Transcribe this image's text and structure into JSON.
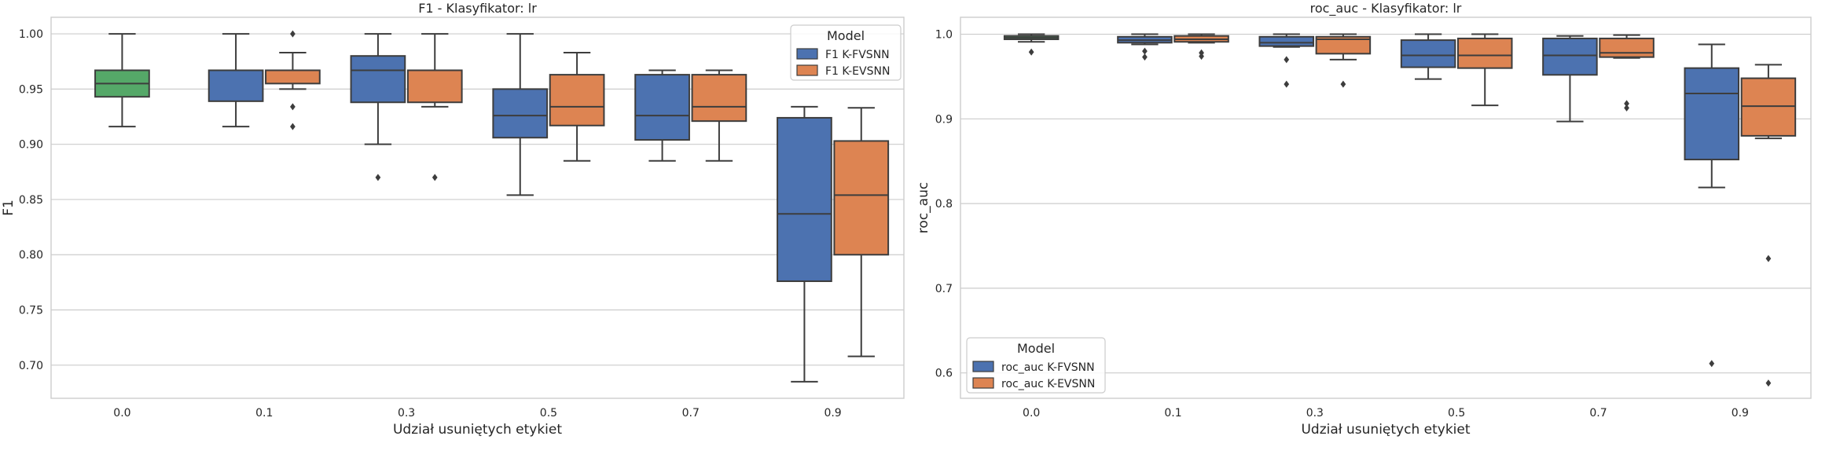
{
  "chart_data": [
    {
      "type": "box",
      "title": "F1 - Klasyfikator: lr",
      "xlabel": "Udział usuniętych etykiet",
      "ylabel": "F1",
      "categories": [
        "0.0",
        "0.1",
        "0.3",
        "0.5",
        "0.7",
        "0.9"
      ],
      "ylim": [
        0.67,
        1.015
      ],
      "yticks": [
        "0.70",
        "0.75",
        "0.80",
        "0.85",
        "0.90",
        "0.95",
        "1.00"
      ],
      "grid": true,
      "legend": {
        "title": "Model",
        "position": "top-right"
      },
      "single_box": {
        "category": "0.0",
        "color": "#55a868",
        "stats": {
          "whislo": 0.916,
          "q1": 0.943,
          "med": 0.955,
          "q3": 0.967,
          "whishi": 1.0,
          "fliers": []
        }
      },
      "series": [
        {
          "name": "F1 K-FVSNN",
          "color": "#4c72b0",
          "boxes": [
            null,
            {
              "whislo": 0.916,
              "q1": 0.939,
              "med": 0.967,
              "q3": 0.967,
              "whishi": 1.0,
              "fliers": []
            },
            {
              "whislo": 0.9,
              "q1": 0.938,
              "med": 0.967,
              "q3": 0.98,
              "whishi": 1.0,
              "fliers": [
                0.87
              ]
            },
            {
              "whislo": 0.854,
              "q1": 0.906,
              "med": 0.926,
              "q3": 0.95,
              "whishi": 1.0,
              "fliers": []
            },
            {
              "whislo": 0.885,
              "q1": 0.904,
              "med": 0.926,
              "q3": 0.963,
              "whishi": 0.967,
              "fliers": []
            },
            {
              "whislo": 0.685,
              "q1": 0.776,
              "med": 0.837,
              "q3": 0.924,
              "whishi": 0.934,
              "fliers": []
            }
          ]
        },
        {
          "name": "F1 K-EVSNN",
          "color": "#dd8452",
          "boxes": [
            null,
            {
              "whislo": 0.95,
              "q1": 0.955,
              "med": 0.967,
              "q3": 0.967,
              "whishi": 0.983,
              "fliers": [
                0.916,
                0.934,
                1.0
              ]
            },
            {
              "whislo": 0.934,
              "q1": 0.938,
              "med": 0.967,
              "q3": 0.967,
              "whishi": 1.0,
              "fliers": [
                0.87
              ]
            },
            {
              "whislo": 0.885,
              "q1": 0.917,
              "med": 0.934,
              "q3": 0.963,
              "whishi": 0.983,
              "fliers": []
            },
            {
              "whislo": 0.885,
              "q1": 0.921,
              "med": 0.934,
              "q3": 0.963,
              "whishi": 0.967,
              "fliers": []
            },
            {
              "whislo": 0.708,
              "q1": 0.8,
              "med": 0.854,
              "q3": 0.903,
              "whishi": 0.933,
              "fliers": []
            }
          ]
        }
      ]
    },
    {
      "type": "box",
      "title": "roc_auc - Klasyfikator: lr",
      "xlabel": "Udział usuniętych etykiet",
      "ylabel": "roc_auc",
      "categories": [
        "0.0",
        "0.1",
        "0.3",
        "0.5",
        "0.7",
        "0.9"
      ],
      "ylim": [
        0.57,
        1.02
      ],
      "yticks": [
        "0.6",
        "0.7",
        "0.8",
        "0.9",
        "1.0"
      ],
      "grid": true,
      "legend": {
        "title": "Model",
        "position": "lower-left"
      },
      "single_box": {
        "category": "0.0",
        "color": "#55a868",
        "stats": {
          "whislo": 0.991,
          "q1": 0.994,
          "med": 0.996,
          "q3": 0.998,
          "whishi": 1.0,
          "fliers": [
            0.979
          ]
        }
      },
      "series": [
        {
          "name": "roc_auc K-FVSNN",
          "color": "#4c72b0",
          "boxes": [
            null,
            {
              "whislo": 0.988,
              "q1": 0.99,
              "med": 0.993,
              "q3": 0.997,
              "whishi": 1.0,
              "fliers": [
                0.973,
                0.98
              ]
            },
            {
              "whislo": 0.985,
              "q1": 0.986,
              "med": 0.99,
              "q3": 0.997,
              "whishi": 1.0,
              "fliers": [
                0.941,
                0.97
              ]
            },
            {
              "whislo": 0.947,
              "q1": 0.961,
              "med": 0.975,
              "q3": 0.993,
              "whishi": 1.0,
              "fliers": []
            },
            {
              "whislo": 0.897,
              "q1": 0.952,
              "med": 0.975,
              "q3": 0.995,
              "whishi": 0.998,
              "fliers": []
            },
            {
              "whislo": 0.819,
              "q1": 0.852,
              "med": 0.93,
              "q3": 0.96,
              "whishi": 0.988,
              "fliers": [
                0.611
              ]
            }
          ]
        },
        {
          "name": "roc_auc K-EVSNN",
          "color": "#dd8452",
          "boxes": [
            null,
            {
              "whislo": 0.99,
              "q1": 0.991,
              "med": 0.994,
              "q3": 0.998,
              "whishi": 1.0,
              "fliers": [
                0.974,
                0.978
              ]
            },
            {
              "whislo": 0.97,
              "q1": 0.977,
              "med": 0.994,
              "q3": 0.997,
              "whishi": 1.0,
              "fliers": [
                0.941
              ]
            },
            {
              "whislo": 0.916,
              "q1": 0.96,
              "med": 0.975,
              "q3": 0.995,
              "whishi": 1.0,
              "fliers": []
            },
            {
              "whislo": 0.972,
              "q1": 0.973,
              "med": 0.978,
              "q3": 0.995,
              "whishi": 0.999,
              "fliers": [
                0.913,
                0.918
              ]
            },
            {
              "whislo": 0.877,
              "q1": 0.88,
              "med": 0.915,
              "q3": 0.948,
              "whishi": 0.964,
              "fliers": [
                0.588,
                0.735
              ]
            }
          ]
        }
      ]
    }
  ]
}
